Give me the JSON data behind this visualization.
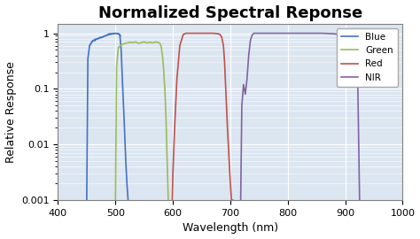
{
  "title": "Normalized Spectral Reponse",
  "xlabel": "Wavelength (nm)",
  "ylabel": "Relative Response",
  "xlim": [
    400,
    1000
  ],
  "ylim": [
    0.001,
    1.5
  ],
  "yticks": [
    0.001,
    0.01,
    0.1,
    1
  ],
  "ytick_labels": [
    "0.001",
    "0.01",
    "0.1",
    "1"
  ],
  "xticks": [
    400,
    500,
    600,
    700,
    800,
    900,
    1000
  ],
  "legend_labels": [
    "Blue",
    "Green",
    "Red",
    "NIR"
  ],
  "legend_colors": [
    "#4472c4",
    "#9bbb59",
    "#c0504d",
    "#8064a2"
  ],
  "plot_bg": "#dce6f1",
  "fig_bg": "#ffffff",
  "grid_color": "#ffffff",
  "title_fontsize": 13,
  "axis_fontsize": 9,
  "tick_fontsize": 8,
  "blue_x": [
    450,
    452,
    455,
    460,
    465,
    470,
    475,
    480,
    485,
    490,
    495,
    500,
    505,
    507,
    508,
    510,
    512,
    515,
    518,
    520,
    522
  ],
  "blue_y": [
    0.001,
    0.35,
    0.6,
    0.72,
    0.78,
    0.8,
    0.84,
    0.88,
    0.92,
    0.95,
    0.98,
    1.0,
    0.98,
    0.96,
    0.85,
    0.5,
    0.15,
    0.03,
    0.005,
    0.002,
    0.001
  ],
  "blue_noise_x": [
    455,
    458,
    461,
    464,
    467,
    470,
    473,
    476,
    479,
    482,
    485,
    488,
    491,
    494,
    497,
    500,
    503,
    506,
    509
  ],
  "blue_noise_y": [
    0.6,
    0.68,
    0.75,
    0.73,
    0.79,
    0.81,
    0.85,
    0.83,
    0.87,
    0.9,
    0.93,
    0.97,
    0.99,
    0.98,
    0.99,
    1.0,
    0.99,
    0.97,
    0.9
  ],
  "green_x": [
    500,
    502,
    505,
    510,
    515,
    520,
    525,
    530,
    535,
    540,
    545,
    550,
    555,
    560,
    565,
    570,
    575,
    578,
    580,
    583,
    586,
    588,
    590,
    592
  ],
  "green_y": [
    0.001,
    0.25,
    0.55,
    0.62,
    0.65,
    0.67,
    0.69,
    0.68,
    0.7,
    0.66,
    0.68,
    0.7,
    0.67,
    0.69,
    0.67,
    0.7,
    0.68,
    0.65,
    0.55,
    0.3,
    0.1,
    0.03,
    0.005,
    0.001
  ],
  "red_x": [
    599,
    600,
    603,
    607,
    612,
    618,
    623,
    630,
    640,
    650,
    655,
    660,
    665,
    670,
    675,
    678,
    680,
    682,
    685,
    688,
    690,
    692,
    695,
    698,
    700,
    702,
    705
  ],
  "red_y": [
    0.001,
    0.003,
    0.02,
    0.15,
    0.6,
    0.95,
    1.0,
    1.0,
    1.0,
    1.0,
    1.0,
    1.0,
    1.0,
    1.0,
    0.99,
    0.98,
    0.97,
    0.95,
    0.85,
    0.6,
    0.3,
    0.1,
    0.02,
    0.005,
    0.002,
    0.001,
    0.001
  ],
  "nir_x": [
    718,
    720,
    723,
    726,
    729,
    732,
    735,
    738,
    741,
    745,
    750,
    760,
    770,
    780,
    790,
    800,
    820,
    840,
    860,
    880,
    890,
    900,
    905,
    910,
    915,
    920,
    922,
    925
  ],
  "nir_y": [
    0.001,
    0.05,
    0.12,
    0.08,
    0.15,
    0.4,
    0.75,
    0.93,
    1.0,
    1.0,
    1.0,
    1.0,
    1.0,
    1.0,
    1.0,
    1.0,
    1.0,
    1.0,
    1.0,
    0.98,
    0.95,
    0.88,
    0.8,
    0.7,
    0.55,
    0.35,
    0.1,
    0.001
  ]
}
